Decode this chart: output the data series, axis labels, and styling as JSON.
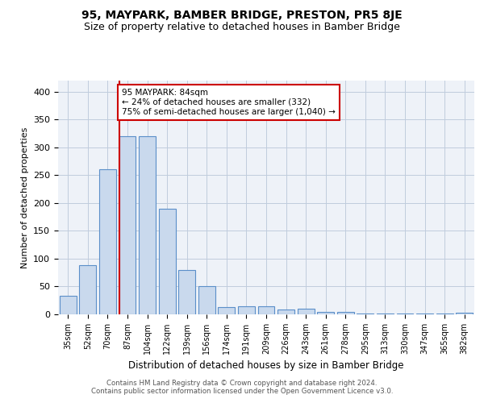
{
  "title": "95, MAYPARK, BAMBER BRIDGE, PRESTON, PR5 8JE",
  "subtitle": "Size of property relative to detached houses in Bamber Bridge",
  "xlabel": "Distribution of detached houses by size in Bamber Bridge",
  "ylabel": "Number of detached properties",
  "bar_labels": [
    "35sqm",
    "52sqm",
    "70sqm",
    "87sqm",
    "104sqm",
    "122sqm",
    "139sqm",
    "156sqm",
    "174sqm",
    "191sqm",
    "209sqm",
    "226sqm",
    "243sqm",
    "261sqm",
    "278sqm",
    "295sqm",
    "313sqm",
    "330sqm",
    "347sqm",
    "365sqm",
    "382sqm"
  ],
  "bar_values": [
    34,
    88,
    260,
    320,
    320,
    190,
    80,
    51,
    13,
    14,
    14,
    8,
    10,
    5,
    4,
    2,
    2,
    1,
    1,
    1,
    3
  ],
  "bar_color": "#c9d9ed",
  "bar_edge_color": "#5b8fc9",
  "property_line_x": 3,
  "annotation_text": "95 MAYPARK: 84sqm\n← 24% of detached houses are smaller (332)\n75% of semi-detached houses are larger (1,040) →",
  "annotation_box_color": "#ffffff",
  "annotation_box_edge_color": "#cc0000",
  "vline_color": "#cc0000",
  "grid_color": "#c0ccdd",
  "background_color": "#eef2f8",
  "footer_text": "Contains HM Land Registry data © Crown copyright and database right 2024.\nContains public sector information licensed under the Open Government Licence v3.0.",
  "ylim": [
    0,
    420
  ],
  "title_fontsize": 10,
  "subtitle_fontsize": 9
}
